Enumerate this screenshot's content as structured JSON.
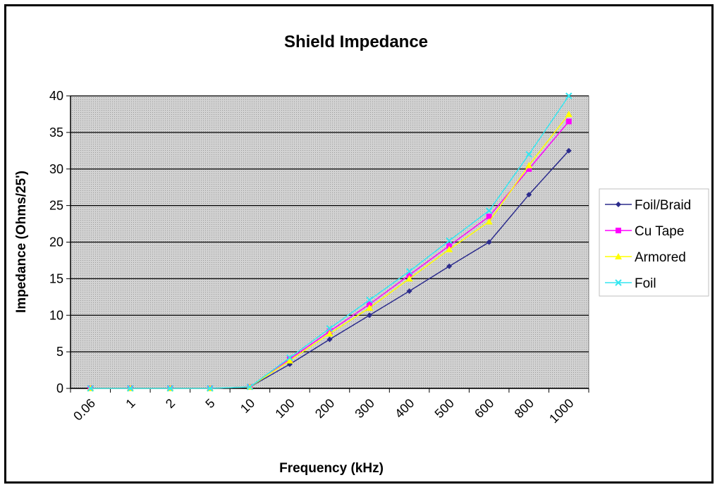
{
  "chart_data": {
    "type": "line",
    "title": "Shield Impedance",
    "xlabel": "Frequency (kHz)",
    "ylabel": "Impedance (Ohms/25')",
    "categories": [
      "0.06",
      "1",
      "2",
      "5",
      "10",
      "100",
      "200",
      "300",
      "400",
      "500",
      "600",
      "800",
      "1000"
    ],
    "ylim": [
      0,
      40
    ],
    "yticks": [
      "0",
      "5",
      "10",
      "15",
      "20",
      "25",
      "30",
      "35",
      "40"
    ],
    "grid": true,
    "legend_position": "right",
    "series": [
      {
        "name": "Foil/Braid",
        "color": "#2b2b8c",
        "marker": "diamond",
        "values": [
          0,
          0,
          0,
          0,
          0.2,
          3.3,
          6.7,
          10,
          13.3,
          16.7,
          20,
          26.5,
          32.5
        ]
      },
      {
        "name": "Cu Tape",
        "color": "#ff00ff",
        "marker": "square",
        "values": [
          0,
          0,
          0,
          0,
          0.2,
          4,
          7.8,
          11.5,
          15.5,
          19.5,
          23.5,
          30,
          36.5
        ]
      },
      {
        "name": "Armored",
        "color": "#ffff00",
        "marker": "triangle",
        "values": [
          0,
          0,
          0,
          0,
          0.2,
          3.8,
          7.5,
          11,
          15,
          19,
          22.8,
          30.5,
          37.5
        ]
      },
      {
        "name": "Foil",
        "color": "#33e6f0",
        "marker": "x",
        "values": [
          0,
          0,
          0,
          0,
          0.2,
          4.2,
          8.2,
          12.1,
          16,
          20.2,
          24.3,
          32,
          40
        ]
      }
    ]
  }
}
